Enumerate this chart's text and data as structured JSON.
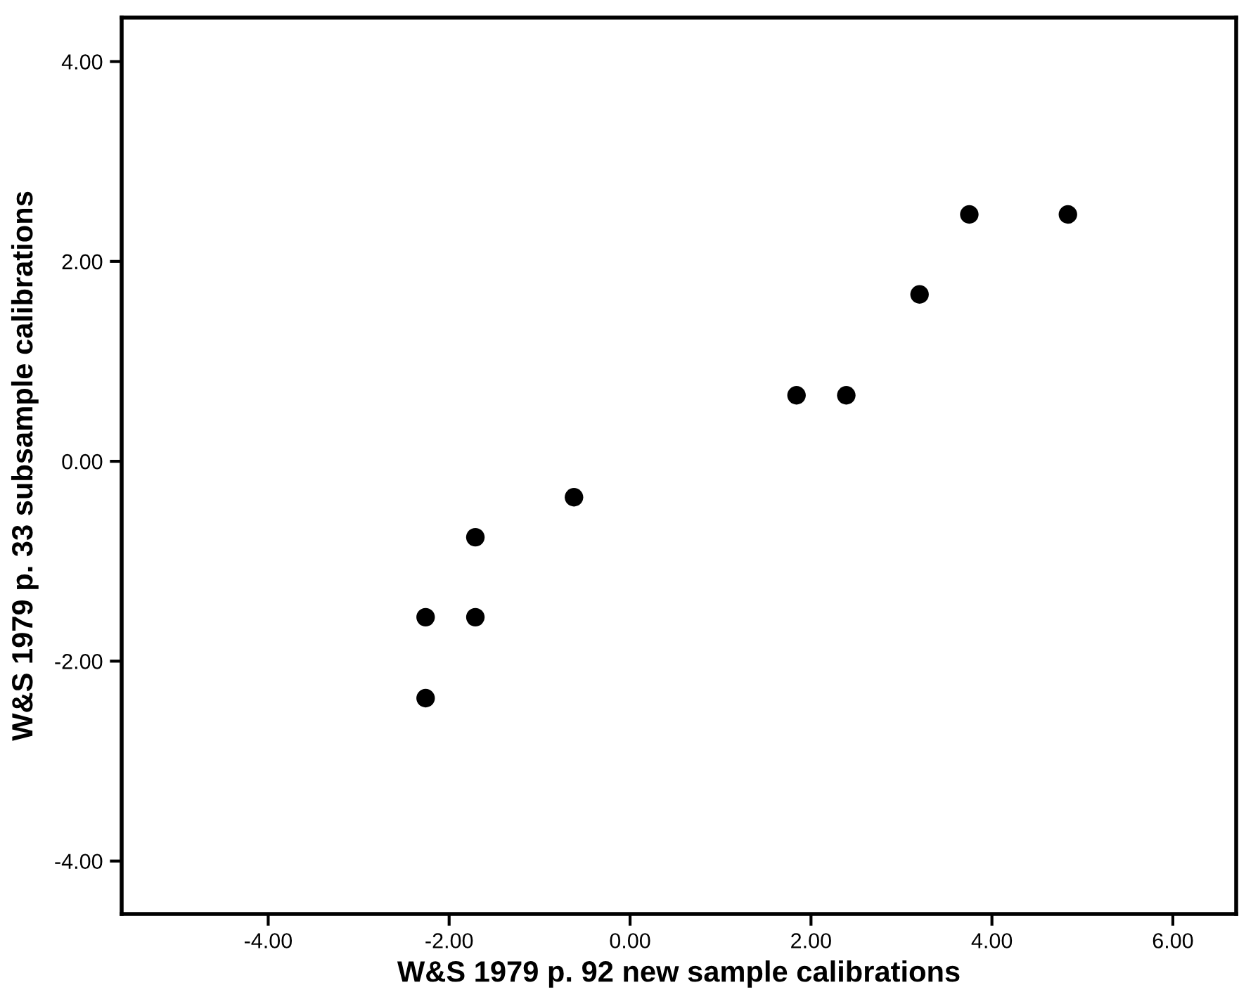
{
  "chart_data": {
    "type": "scatter",
    "xlabel": "W&S 1979 p. 92 new sample calibrations",
    "ylabel": "W&S 1979 p. 33 subsample calibrations",
    "x": [
      -2.26,
      -2.26,
      -1.71,
      -1.71,
      -0.62,
      1.84,
      2.39,
      3.2,
      3.75,
      4.84
    ],
    "series": [
      {
        "color": "#000000",
        "values": [
          -2.37,
          -1.56,
          -1.56,
          -0.76,
          -0.36,
          0.66,
          0.66,
          1.67,
          2.47,
          2.47
        ]
      }
    ],
    "marker": "circle",
    "xlim": [
      -5.62,
      6.7
    ],
    "ylim": [
      -4.53,
      4.44
    ],
    "xticks": [
      {
        "value": -4,
        "label": "-4.00"
      },
      {
        "value": -2,
        "label": "-2.00"
      },
      {
        "value": 0,
        "label": "0.00"
      },
      {
        "value": 2,
        "label": "2.00"
      },
      {
        "value": 4,
        "label": "4.00"
      },
      {
        "value": 6,
        "label": "6.00"
      }
    ],
    "yticks": [
      {
        "value": -4,
        "label": "-4.00"
      },
      {
        "value": -2,
        "label": "-2.00"
      },
      {
        "value": 0,
        "label": "0.00"
      },
      {
        "value": 2,
        "label": "2.00"
      },
      {
        "value": 4,
        "label": "4.00"
      }
    ],
    "grid": false,
    "legend": false
  }
}
